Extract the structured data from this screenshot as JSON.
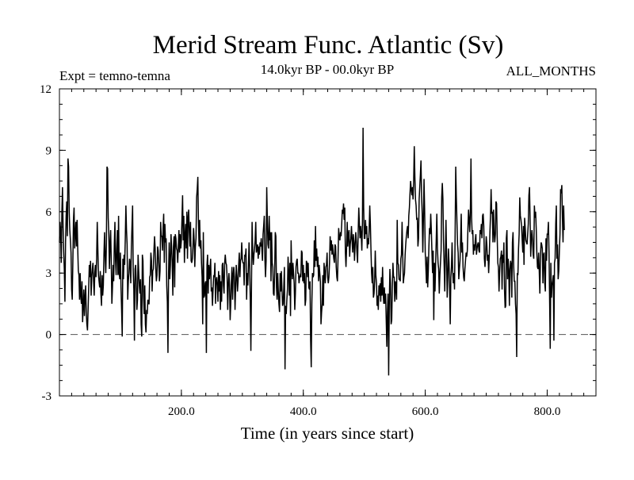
{
  "chart_data": {
    "type": "line",
    "title": "Merid Stream Func. Atlantic (Sv)",
    "subtitle_left": "Expt = temno-temna",
    "subtitle_center": "14.0kyr BP - 00.0kyr BP",
    "subtitle_right": "ALL_MONTHS",
    "xlabel": "Time (in years since start)",
    "ylabel": "",
    "xlim": [
      0,
      880
    ],
    "ylim": [
      -3,
      12
    ],
    "x_ticks": [
      {
        "value": 200,
        "label": "200.0"
      },
      {
        "value": 400,
        "label": "400.0"
      },
      {
        "value": 600,
        "label": "600.0"
      },
      {
        "value": 800,
        "label": "800.0"
      }
    ],
    "y_ticks": [
      {
        "value": -3,
        "label": "-3"
      },
      {
        "value": 0,
        "label": "0"
      },
      {
        "value": 3,
        "label": "3"
      },
      {
        "value": 6,
        "label": "6"
      },
      {
        "value": 9,
        "label": "9"
      },
      {
        "value": 12,
        "label": "12"
      }
    ],
    "reference_line": {
      "y": 0,
      "style": "dashed"
    },
    "series": [
      {
        "name": "Merid Stream Func. Atlantic",
        "x_start": 0,
        "x_step": 1,
        "values": [
          4.5,
          5.5,
          5.0,
          3.5,
          6.0,
          7.2,
          5.2,
          4.0,
          3.2,
          1.6,
          4.5,
          5.8,
          6.5,
          4.8,
          8.6,
          8.2,
          6.0,
          5.1,
          4.6,
          4.0,
          2.2,
          1.7,
          3.5,
          5.6,
          6.2,
          4.2,
          4.9,
          5.5,
          4.3,
          5.6,
          4.2,
          3.1,
          2.9,
          1.7,
          3.0,
          1.9,
          1.5,
          2.6,
          0.6,
          1.4,
          2.2,
          0.9,
          1.8,
          2.4,
          1.1,
          0.5,
          0.2,
          1.2,
          2.3,
          3.4,
          2.8,
          3.6,
          1.9,
          2.8,
          3.2,
          3.5,
          2.6,
          1.9,
          3.0,
          3.4,
          2.8,
          3.7,
          5.5,
          4.2,
          2.9,
          2.6,
          2.3,
          3.1,
          2.0,
          1.4,
          2.9,
          1.9,
          2.4,
          3.9,
          5.0,
          3.8,
          3.0,
          4.4,
          8.2,
          8.1,
          5.7,
          4.9,
          3.2,
          4.4,
          5.1,
          3.6,
          1.5,
          2.3,
          3.4,
          2.6,
          4.4,
          5.5,
          3.6,
          2.9,
          4.2,
          5.1,
          2.9,
          5.8,
          3.0,
          2.7,
          4.0,
          2.3,
          1.2,
          -0.1,
          3.7,
          2.7,
          3.9,
          3.4,
          4.7,
          6.3,
          5.1,
          4.4,
          1.7,
          2.6,
          3.0,
          3.7,
          3.5,
          2.5,
          4.3,
          5.3,
          6.3,
          3.1,
          2.2,
          -0.3,
          3.2,
          3.4,
          2.6,
          1.2,
          1.7,
          3.9,
          3.1,
          2.4,
          2.0,
          2.7,
          0.5,
          -0.1,
          3.9,
          3.6,
          1.8,
          1.0,
          2.4,
          0.5,
          0.1,
          1.2,
          1.0,
          1.7,
          1.5,
          1.5,
          2.8,
          2.9,
          4.0,
          3.6,
          2.1,
          3.1,
          3.2,
          4.1,
          4.8,
          4.2,
          3.2,
          2.6,
          2.9,
          4.3,
          4.1,
          3.4,
          2.6,
          3.1,
          5.5,
          4.8,
          4.8,
          4.1,
          5.2,
          5.9,
          3.5,
          5.4,
          4.5,
          4.7,
          2.4,
          1.6,
          -0.9,
          3.0,
          4.5,
          2.7,
          3.4,
          4.9,
          4.2,
          3.5,
          1.9,
          4.3,
          4.8,
          2.3,
          4.9,
          4.7,
          4.2,
          4.1,
          3.5,
          4.3,
          5.1,
          4.0,
          4.9,
          4.2,
          4.6,
          5.7,
          6.8,
          4.6,
          5.8,
          3.5,
          4.8,
          5.4,
          4.2,
          6.0,
          3.7,
          5.7,
          6.1,
          5.0,
          4.3,
          5.5,
          3.6,
          3.5,
          3.7,
          4.3,
          5.2,
          4.6,
          3.3,
          4.3,
          4.7,
          6.7,
          7.1,
          7.7,
          5.5,
          4.3,
          5.6,
          4.2,
          4.6,
          3.5,
          2.8,
          0.5,
          5.0,
          1.8,
          1.9,
          2.5,
          2.6,
          -0.9,
          3.4,
          3.9,
          2.0,
          3.4,
          2.7,
          3.2,
          3.7,
          2.1,
          2.3,
          1.4,
          2.2,
          2.9,
          2.8,
          3.5,
          1.5,
          2.6,
          2.8,
          2.4,
          1.6,
          3.1,
          2.1,
          2.9,
          1.2,
          2.6,
          1.6,
          3.4,
          3.5,
          2.4,
          2.0,
          3.5,
          3.9,
          3.5,
          3.4,
          2.8,
          1.2,
          2.4,
          3.0,
          2.4,
          0.7,
          1.5,
          2.6,
          3.3,
          1.7,
          2.9,
          3.3,
          2.8,
          1.2,
          2.3,
          3.4,
          2.9,
          2.1,
          2.6,
          3.4,
          4.0,
          2.8,
          3.6,
          3.7,
          4.5,
          3.7,
          3.5,
          3.5,
          2.4,
          3.9,
          3.8,
          4.2,
          1.7,
          3.0,
          2.4,
          3.4,
          4.5,
          3.3,
          1.7,
          -0.8,
          2.4,
          5.5,
          4.1,
          3.4,
          3.9,
          4.2,
          4.6,
          5.5,
          4.0,
          4.2,
          4.4,
          3.7,
          4.3,
          3.9,
          4.5,
          4.3,
          4.7,
          4.2,
          3.6,
          4.9,
          5.3,
          5.8,
          3.7,
          2.8,
          3.6,
          7.2,
          5.6,
          4.4,
          4.2,
          5.8,
          4.6,
          5.0,
          2.6,
          5.0,
          3.5,
          3.3,
          2.0,
          1.9,
          3.0,
          5.0,
          4.8,
          2.3,
          1.7,
          3.0,
          2.1,
          1.5,
          1.1,
          3.0,
          2.1,
          3.1,
          2.2,
          1.4,
          1.5,
          2.3,
          3.3,
          -1.7,
          1.4,
          1.0,
          1.7,
          2.2,
          3.8,
          3.0,
          1.9,
          3.5,
          0.9,
          4.6,
          3.2,
          2.7,
          3.5,
          3.0,
          2.5,
          1.2,
          2.0,
          3.3,
          3.6,
          3.7,
          3.0,
          3.0,
          2.5,
          2.8,
          2.9,
          2.8,
          4.1,
          4.0,
          2.6,
          3.4,
          2.5,
          3.0,
          1.4,
          1.7,
          3.6,
          3.5,
          2.8,
          3.5,
          2.3,
          2.2,
          2.6,
          -0.3,
          -1.6,
          1.5,
          3.0,
          2.8,
          2.9,
          4.6,
          3.3,
          5.3,
          3.6,
          4.2,
          3.3,
          3.8,
          2.6,
          3.4,
          3.0,
          2.6,
          0.5,
          1.1,
          1.5,
          2.9,
          1.4,
          3.5,
          3.0,
          2.5,
          3.3,
          3.4,
          4.0,
          2.8,
          2.5,
          2.8,
          3.5,
          4.8,
          4.1,
          4.6,
          3.9,
          4.4,
          4.0,
          3.7,
          3.5,
          4.4,
          4.3,
          3.3,
          2.8,
          2.6,
          3.8,
          5.2,
          4.7,
          4.6,
          5.0,
          4.8,
          5.4,
          6.1,
          5.9,
          6.4,
          5.6,
          6.2,
          4.0,
          3.3,
          4.2,
          5.5,
          4.3,
          4.9,
          5.1,
          3.8,
          4.4,
          4.7,
          5.3,
          4.6,
          4.0,
          4.9,
          4.5,
          3.6,
          4.4,
          5.0,
          4.6,
          4.0,
          3.5,
          5.0,
          6.2,
          5.4,
          4.7,
          5.3,
          4.9,
          4.1,
          5.5,
          10.1,
          6.2,
          4.7,
          4.7,
          5.6,
          4.9,
          5.3,
          4.2,
          4.7,
          4.4,
          5.1,
          6.3,
          5.4,
          4.1,
          3.0,
          2.5,
          3.3,
          1.8,
          2.0,
          2.6,
          4.1,
          2.9,
          2.5,
          1.4,
          1.9,
          1.2,
          2.4,
          1.9,
          2.5,
          1.6,
          2.8,
          1.9,
          3.3,
          2.0,
          1.5,
          2.3,
          1.5,
          2.0,
          0.7,
          -0.6,
          1.1,
          2.0,
          -2.0,
          1.4,
          3.2,
          2.5,
          0.5,
          0.7,
          2.3,
          3.5,
          2.8,
          2.8,
          1.6,
          2.6,
          2.3,
          1.7,
          5.6,
          3.5,
          3.4,
          2.7,
          2.7,
          2.6,
          3.7,
          3.9,
          5.5,
          4.0,
          2.5,
          2.8,
          3.0,
          3.9,
          4.4,
          4.8,
          5.1,
          5.3,
          4.7,
          5.8,
          6.2,
          6.9,
          7.5,
          7.1,
          6.8,
          7.2,
          6.6,
          7.5,
          9.2,
          7.7,
          6.6,
          6.3,
          5.6,
          5.7,
          4.3,
          4.7,
          6.6,
          7.2,
          7.8,
          8.5,
          6.8,
          5.9,
          4.0,
          5.6,
          7.6,
          6.1,
          4.0,
          3.3,
          2.5,
          3.8,
          2.3,
          3.1,
          4.3,
          5.2,
          4.9,
          5.9,
          5.1,
          4.0,
          3.0,
          4.1,
          0.7,
          3.5,
          2.1,
          3.4,
          4.6,
          5.9,
          4.2,
          3.5,
          3.2,
          2.0,
          2.9,
          3.5,
          4.1,
          6.7,
          7.4,
          6.6,
          4.5,
          3.4,
          2.1,
          3.8,
          5.6,
          3.8,
          1.8,
          2.8,
          4.2,
          3.5,
          2.2,
          0.5,
          2.8,
          3.3,
          4.5,
          3.1,
          2.5,
          3.0,
          2.2,
          4.9,
          8.2,
          6.7,
          5.5,
          4.4,
          4.0,
          2.7,
          3.2,
          3.6,
          4.6,
          5.9,
          4.0,
          4.5,
          3.3,
          2.8,
          2.6,
          3.2,
          3.6,
          4.0,
          3.8,
          4.1,
          5.2,
          6.1,
          5.6,
          5.0,
          6.0,
          8.6,
          5.7,
          4.9,
          5.1,
          3.9,
          4.4,
          4.1,
          4.6,
          4.9,
          3.9,
          4.2,
          4.4,
          4.5,
          4.1,
          4.0,
          5.1,
          4.9,
          5.4,
          4.7,
          5.8,
          5.9,
          5.3,
          3.7,
          3.3,
          3.9,
          4.8,
          4.4,
          3.6,
          3.9,
          3.0,
          3.8,
          4.9,
          5.8,
          7.1,
          5.9,
          6.0,
          4.5,
          6.1,
          5.0,
          4.5,
          4.9,
          6.5,
          6.4,
          4.8,
          3.5,
          3.3,
          2.1,
          3.0,
          3.7,
          3.8,
          4.1,
          2.2,
          3.9,
          3.5,
          4.5,
          2.2,
          1.3,
          1.4,
          4.7,
          5.1,
          2.7,
          3.7,
          3.1,
          1.4,
          3.2,
          3.6,
          3.4,
          1.8,
          4.5,
          5.0,
          3.4,
          2.6,
          2.6,
          1.5,
          1.0,
          -1.1,
          3.0,
          2.9,
          4.2,
          4.9,
          6.7,
          5.8,
          5.6,
          5.3,
          4.6,
          4.0,
          5.3,
          3.4,
          5.7,
          5.2,
          4.6,
          4.5,
          4.4,
          4.9,
          5.4,
          6.8,
          7.2,
          5.6,
          3.8,
          4.7,
          5.1,
          4.6,
          3.9,
          3.7,
          6.3,
          5.7,
          6.0,
          5.2,
          4.0,
          3.3,
          3.2,
          4.0,
          3.1,
          2.0,
          3.8,
          4.5,
          4.4,
          4.2,
          2.5,
          3.9,
          4.0,
          2.5,
          2.1,
          4.7,
          3.6,
          4.9,
          4.9,
          5.5,
          4.0,
          1.7,
          -0.7,
          3.5,
          1.8,
          2.4,
          2.6,
          2.9,
          -0.3,
          3.5,
          3.7,
          5.4,
          6.3,
          3.7,
          4.4,
          2.7,
          3.1,
          4.1,
          4.9,
          7.1,
          6.9,
          7.3,
          5.7,
          4.5,
          6.3,
          5.1
        ]
      }
    ]
  }
}
